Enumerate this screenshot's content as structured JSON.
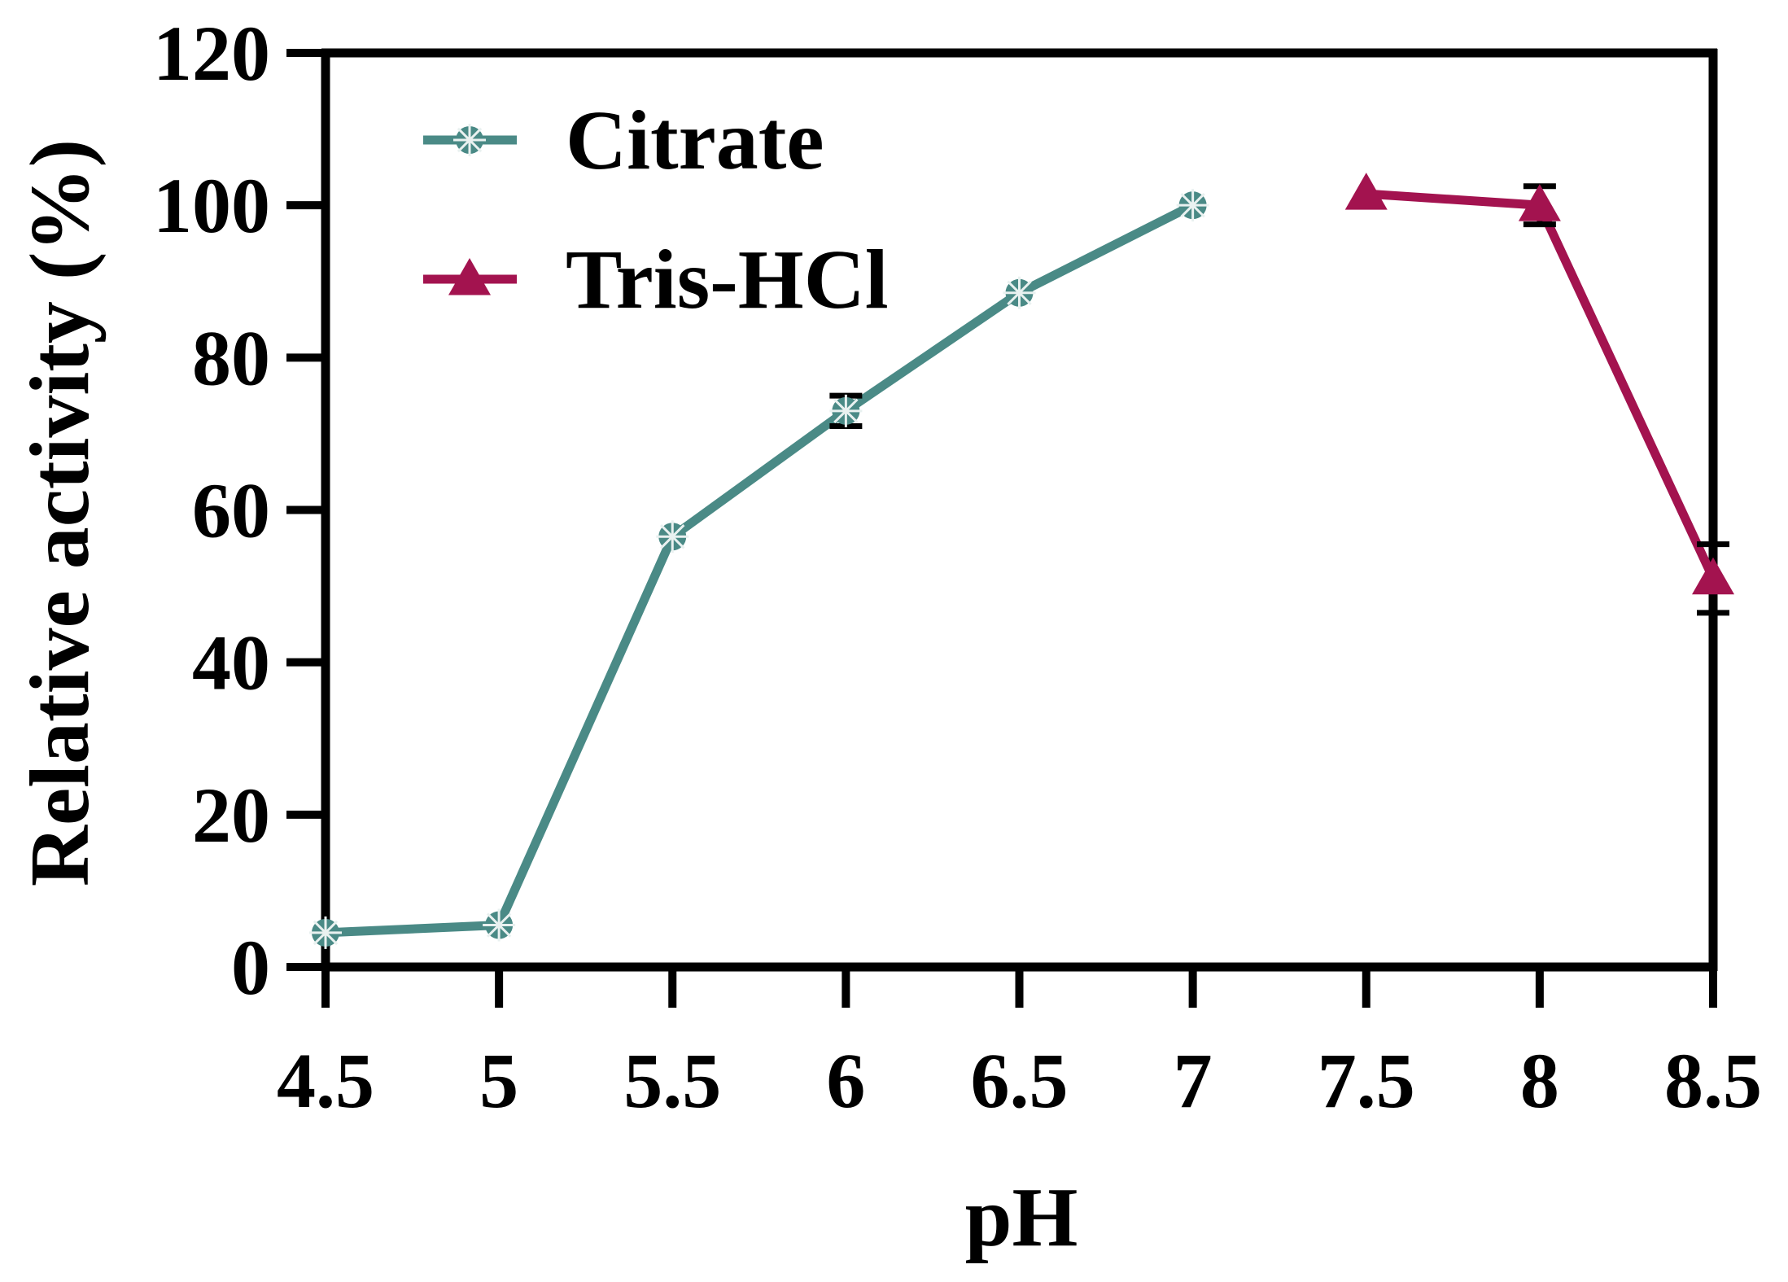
{
  "chart_data": {
    "type": "line",
    "title": "",
    "xlabel": "pH",
    "ylabel": "Relative activity (%)",
    "xlim": [
      4.5,
      8.5
    ],
    "ylim": [
      0,
      120
    ],
    "xticks": [
      "4.5",
      "5",
      "5.5",
      "6",
      "6.5",
      "7",
      "7.5",
      "8",
      "8.5"
    ],
    "yticks": [
      "0",
      "20",
      "40",
      "60",
      "80",
      "100",
      "120"
    ],
    "grid": false,
    "legend_position": "top-left",
    "series": [
      {
        "name": "Citrate",
        "color": "#4a8a86",
        "marker": "asterisk-circle",
        "x": [
          4.5,
          5,
          5.5,
          6,
          6.5,
          7
        ],
        "y": [
          4.5,
          5.5,
          56.5,
          73,
          88.5,
          100
        ],
        "error": [
          0,
          0,
          0,
          2,
          0,
          0
        ]
      },
      {
        "name": "Tris-HCl",
        "color": "#a3134f",
        "marker": "triangle",
        "x": [
          7.5,
          8,
          8.5
        ],
        "y": [
          101.5,
          100,
          51
        ],
        "error": [
          0,
          2.5,
          4.5
        ]
      }
    ]
  }
}
